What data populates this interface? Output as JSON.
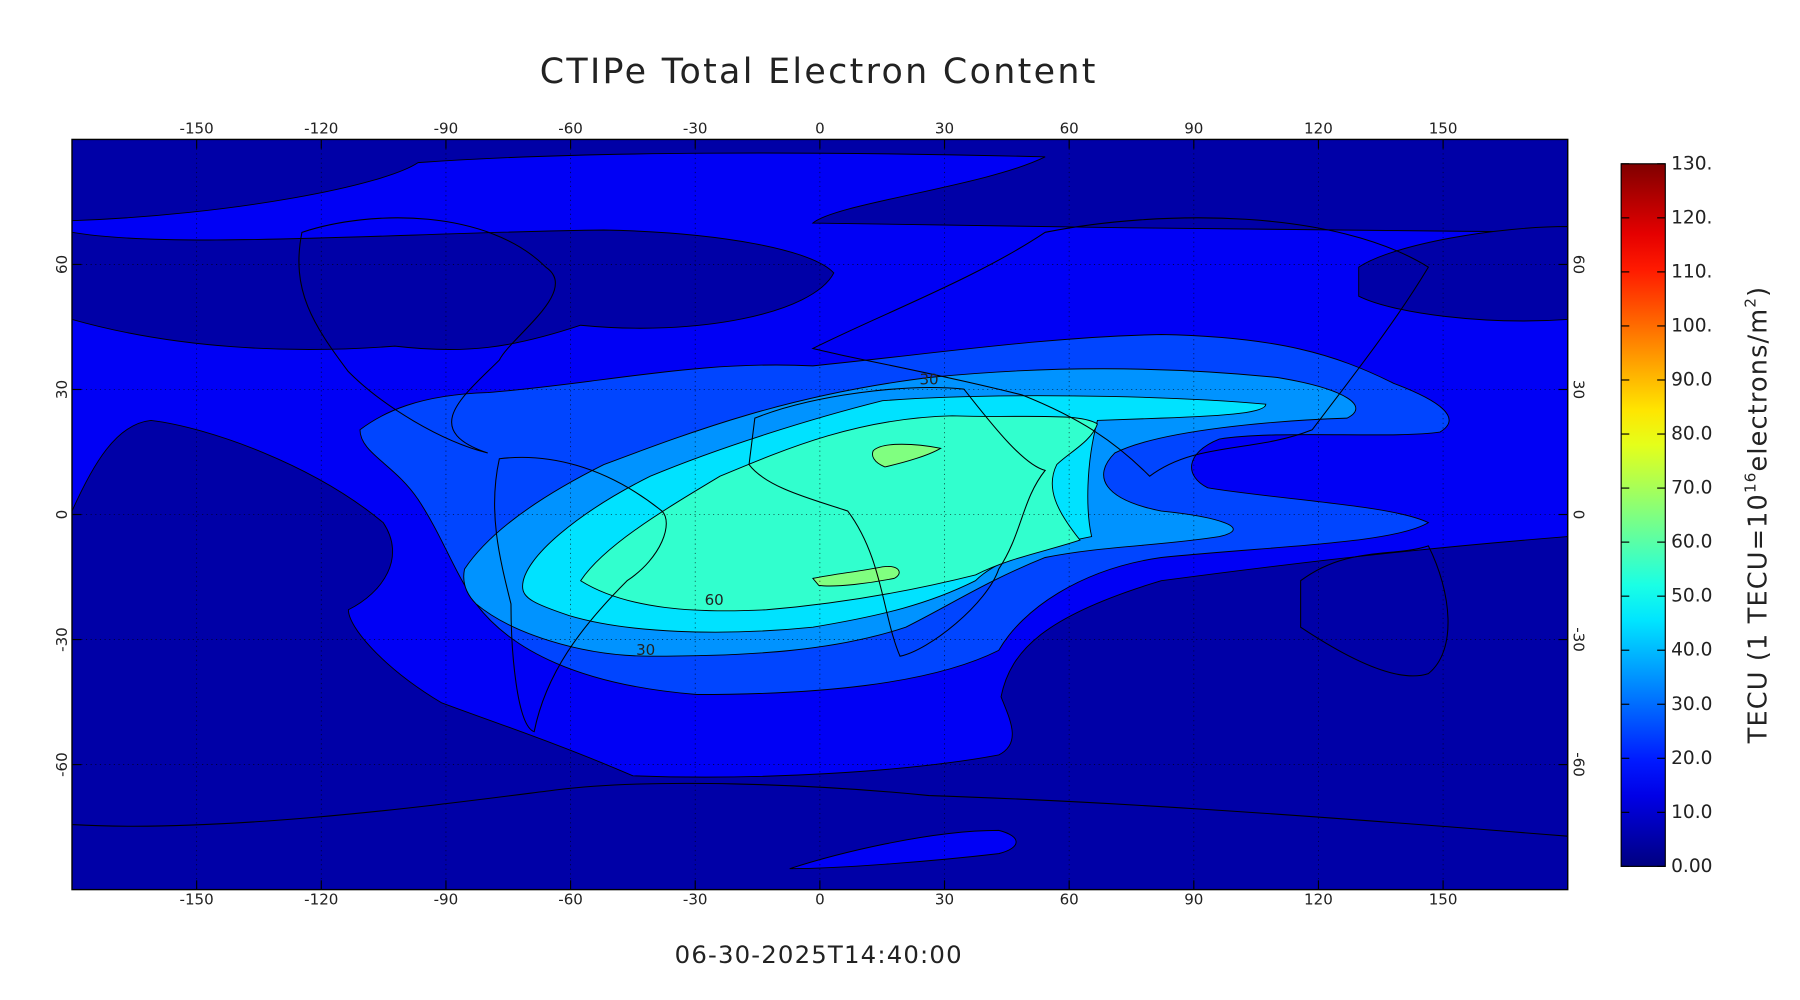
{
  "chart_data": {
    "type": "contour",
    "title": "CTIPe Total Electron Content",
    "timestamp": "06-30-2025T14:40:00",
    "xlim": [
      -180,
      180
    ],
    "ylim": [
      -90,
      90
    ],
    "xticks": [
      -150,
      -120,
      -90,
      -60,
      -30,
      0,
      30,
      60,
      90,
      120,
      150
    ],
    "yticks": [
      -60,
      -30,
      0,
      30,
      60
    ],
    "grid": true,
    "colormap": "jet",
    "contour_levels": [
      0,
      10,
      20,
      30,
      40,
      50,
      60
    ],
    "contour_labels": [
      60,
      30,
      30
    ],
    "colorbar": {
      "lim": [
        0,
        130
      ],
      "ticks": [
        {
          "value": 0,
          "label": "0.00"
        },
        {
          "value": 10,
          "label": "10.0"
        },
        {
          "value": 20,
          "label": "20.0"
        },
        {
          "value": 30,
          "label": "30.0"
        },
        {
          "value": 40,
          "label": "40.0"
        },
        {
          "value": 50,
          "label": "50.0"
        },
        {
          "value": 60,
          "label": "60.0"
        },
        {
          "value": 70,
          "label": "70.0"
        },
        {
          "value": 80,
          "label": "80.0"
        },
        {
          "value": 90,
          "label": "90.0"
        },
        {
          "value": 100,
          "label": "100."
        },
        {
          "value": 110,
          "label": "110."
        },
        {
          "value": 120,
          "label": "120."
        },
        {
          "value": 130,
          "label": "130."
        }
      ],
      "label": [
        "TECU (1 TECU=10",
        "16",
        "electrons/m",
        "2",
        ")"
      ]
    }
  }
}
